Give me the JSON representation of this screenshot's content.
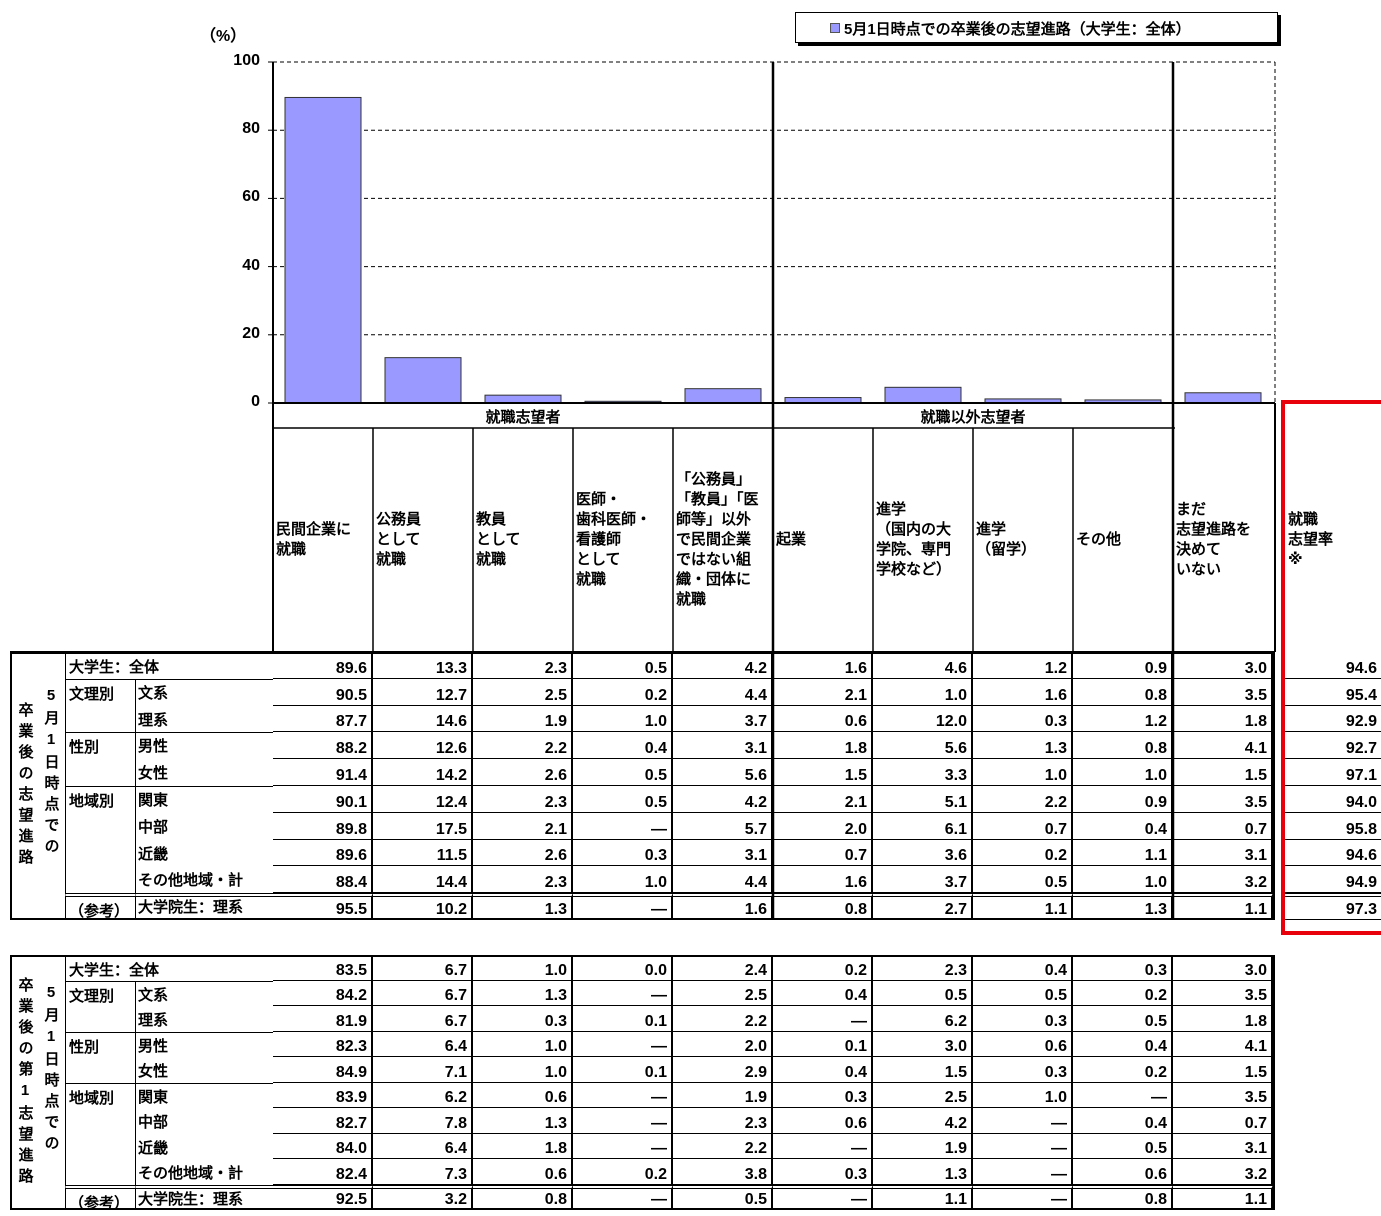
{
  "chart_data": {
    "type": "bar",
    "y_label": "（%）",
    "categories": [
      "民間企業に\n就職",
      "公務員\nとして\n就職",
      "教員\nとして\n就職",
      "医師・\n歯科医師・\n看護師\nとして\n就職",
      "「公務員」\n「教員」「医\n師等」以外\nで民間企業\nではない組\n織・団体に\n就職",
      "起業",
      "進学\n（国内の大\n学院、専門\n学校など）",
      "進学\n（留学）",
      "その他",
      "まだ\n志望進路を\n決めて\nいない"
    ],
    "groups": [
      "就職志望者",
      "就職以外志望者"
    ],
    "series": [
      {
        "name": "5月1日時点での卒業後の志望進路（大学生：全体）",
        "color": "#9999ff",
        "values": [
          89.6,
          13.3,
          2.3,
          0.5,
          4.2,
          1.6,
          4.6,
          1.2,
          0.9,
          3.0
        ]
      }
    ],
    "ylim": [
      0,
      100
    ],
    "yticks": [
      0,
      20,
      40,
      60,
      80,
      100
    ],
    "grid": true,
    "legend": "top-right"
  },
  "tables": [
    {
      "side_label": [
        "卒業後の志望進路",
        "5月1日時点での"
      ],
      "extra_header": "就職\n志望率\n※",
      "rows": [
        {
          "group": "大学生：全体",
          "cells": [
            "89.6",
            "13.3",
            "2.3",
            "0.5",
            "4.2",
            "1.6",
            "4.6",
            "1.2",
            "0.9",
            "3.0"
          ],
          "extra": "94.6"
        },
        {
          "group": "文理別",
          "label": "文系",
          "cells": [
            "90.5",
            "12.7",
            "2.5",
            "0.2",
            "4.4",
            "2.1",
            "1.0",
            "1.6",
            "0.8",
            "3.5"
          ],
          "extra": "95.4"
        },
        {
          "label": "理系",
          "cells": [
            "87.7",
            "14.6",
            "1.9",
            "1.0",
            "3.7",
            "0.6",
            "12.0",
            "0.3",
            "1.2",
            "1.8"
          ],
          "extra": "92.9"
        },
        {
          "group": "性別",
          "label": "男性",
          "cells": [
            "88.2",
            "12.6",
            "2.2",
            "0.4",
            "3.1",
            "1.8",
            "5.6",
            "1.3",
            "0.8",
            "4.1"
          ],
          "extra": "92.7"
        },
        {
          "label": "女性",
          "cells": [
            "91.4",
            "14.2",
            "2.6",
            "0.5",
            "5.6",
            "1.5",
            "3.3",
            "1.0",
            "1.0",
            "1.5"
          ],
          "extra": "97.1"
        },
        {
          "group": "地域別",
          "label": "関東",
          "cells": [
            "90.1",
            "12.4",
            "2.3",
            "0.5",
            "4.2",
            "2.1",
            "5.1",
            "2.2",
            "0.9",
            "3.5"
          ],
          "extra": "94.0"
        },
        {
          "label": "中部",
          "cells": [
            "89.8",
            "17.5",
            "2.1",
            "—",
            "5.7",
            "2.0",
            "6.1",
            "0.7",
            "0.4",
            "0.7"
          ],
          "extra": "95.8"
        },
        {
          "label": "近畿",
          "cells": [
            "89.6",
            "11.5",
            "2.6",
            "0.3",
            "3.1",
            "0.7",
            "3.6",
            "0.2",
            "1.1",
            "3.1"
          ],
          "extra": "94.6"
        },
        {
          "label": "その他地域・計",
          "cells": [
            "88.4",
            "14.4",
            "2.3",
            "1.0",
            "4.4",
            "1.6",
            "3.7",
            "0.5",
            "1.0",
            "3.2"
          ],
          "extra": "94.9"
        },
        {
          "group": "（参考）",
          "label": "大学院生：理系",
          "cells": [
            "95.5",
            "10.2",
            "1.3",
            "—",
            "1.6",
            "0.8",
            "2.7",
            "1.1",
            "1.3",
            "1.1"
          ],
          "extra": "97.3"
        }
      ]
    },
    {
      "side_label": [
        "卒業後の第1志望進路",
        "5月1日時点での"
      ],
      "rows": [
        {
          "group": "大学生：全体",
          "cells": [
            "83.5",
            "6.7",
            "1.0",
            "0.0",
            "2.4",
            "0.2",
            "2.3",
            "0.4",
            "0.3",
            "3.0"
          ]
        },
        {
          "group": "文理別",
          "label": "文系",
          "cells": [
            "84.2",
            "6.7",
            "1.3",
            "—",
            "2.5",
            "0.4",
            "0.5",
            "0.5",
            "0.2",
            "3.5"
          ]
        },
        {
          "label": "理系",
          "cells": [
            "81.9",
            "6.7",
            "0.3",
            "0.1",
            "2.2",
            "—",
            "6.2",
            "0.3",
            "0.5",
            "1.8"
          ]
        },
        {
          "group": "性別",
          "label": "男性",
          "cells": [
            "82.3",
            "6.4",
            "1.0",
            "—",
            "2.0",
            "0.1",
            "3.0",
            "0.6",
            "0.4",
            "4.1"
          ]
        },
        {
          "label": "女性",
          "cells": [
            "84.9",
            "7.1",
            "1.0",
            "0.1",
            "2.9",
            "0.4",
            "1.5",
            "0.3",
            "0.2",
            "1.5"
          ]
        },
        {
          "group": "地域別",
          "label": "関東",
          "cells": [
            "83.9",
            "6.2",
            "0.6",
            "—",
            "1.9",
            "0.3",
            "2.5",
            "1.0",
            "—",
            "3.5"
          ]
        },
        {
          "label": "中部",
          "cells": [
            "82.7",
            "7.8",
            "1.3",
            "—",
            "2.3",
            "0.6",
            "4.2",
            "—",
            "0.4",
            "0.7"
          ]
        },
        {
          "label": "近畿",
          "cells": [
            "84.0",
            "6.4",
            "1.8",
            "—",
            "2.2",
            "—",
            "1.9",
            "—",
            "0.5",
            "3.1"
          ]
        },
        {
          "label": "その他地域・計",
          "cells": [
            "82.4",
            "7.3",
            "0.6",
            "0.2",
            "3.8",
            "0.3",
            "1.3",
            "—",
            "0.6",
            "3.2"
          ]
        },
        {
          "group": "（参考）",
          "label": "大学院生：理系",
          "cells": [
            "92.5",
            "3.2",
            "0.8",
            "—",
            "0.5",
            "—",
            "1.1",
            "—",
            "0.8",
            "1.1"
          ]
        }
      ]
    }
  ]
}
